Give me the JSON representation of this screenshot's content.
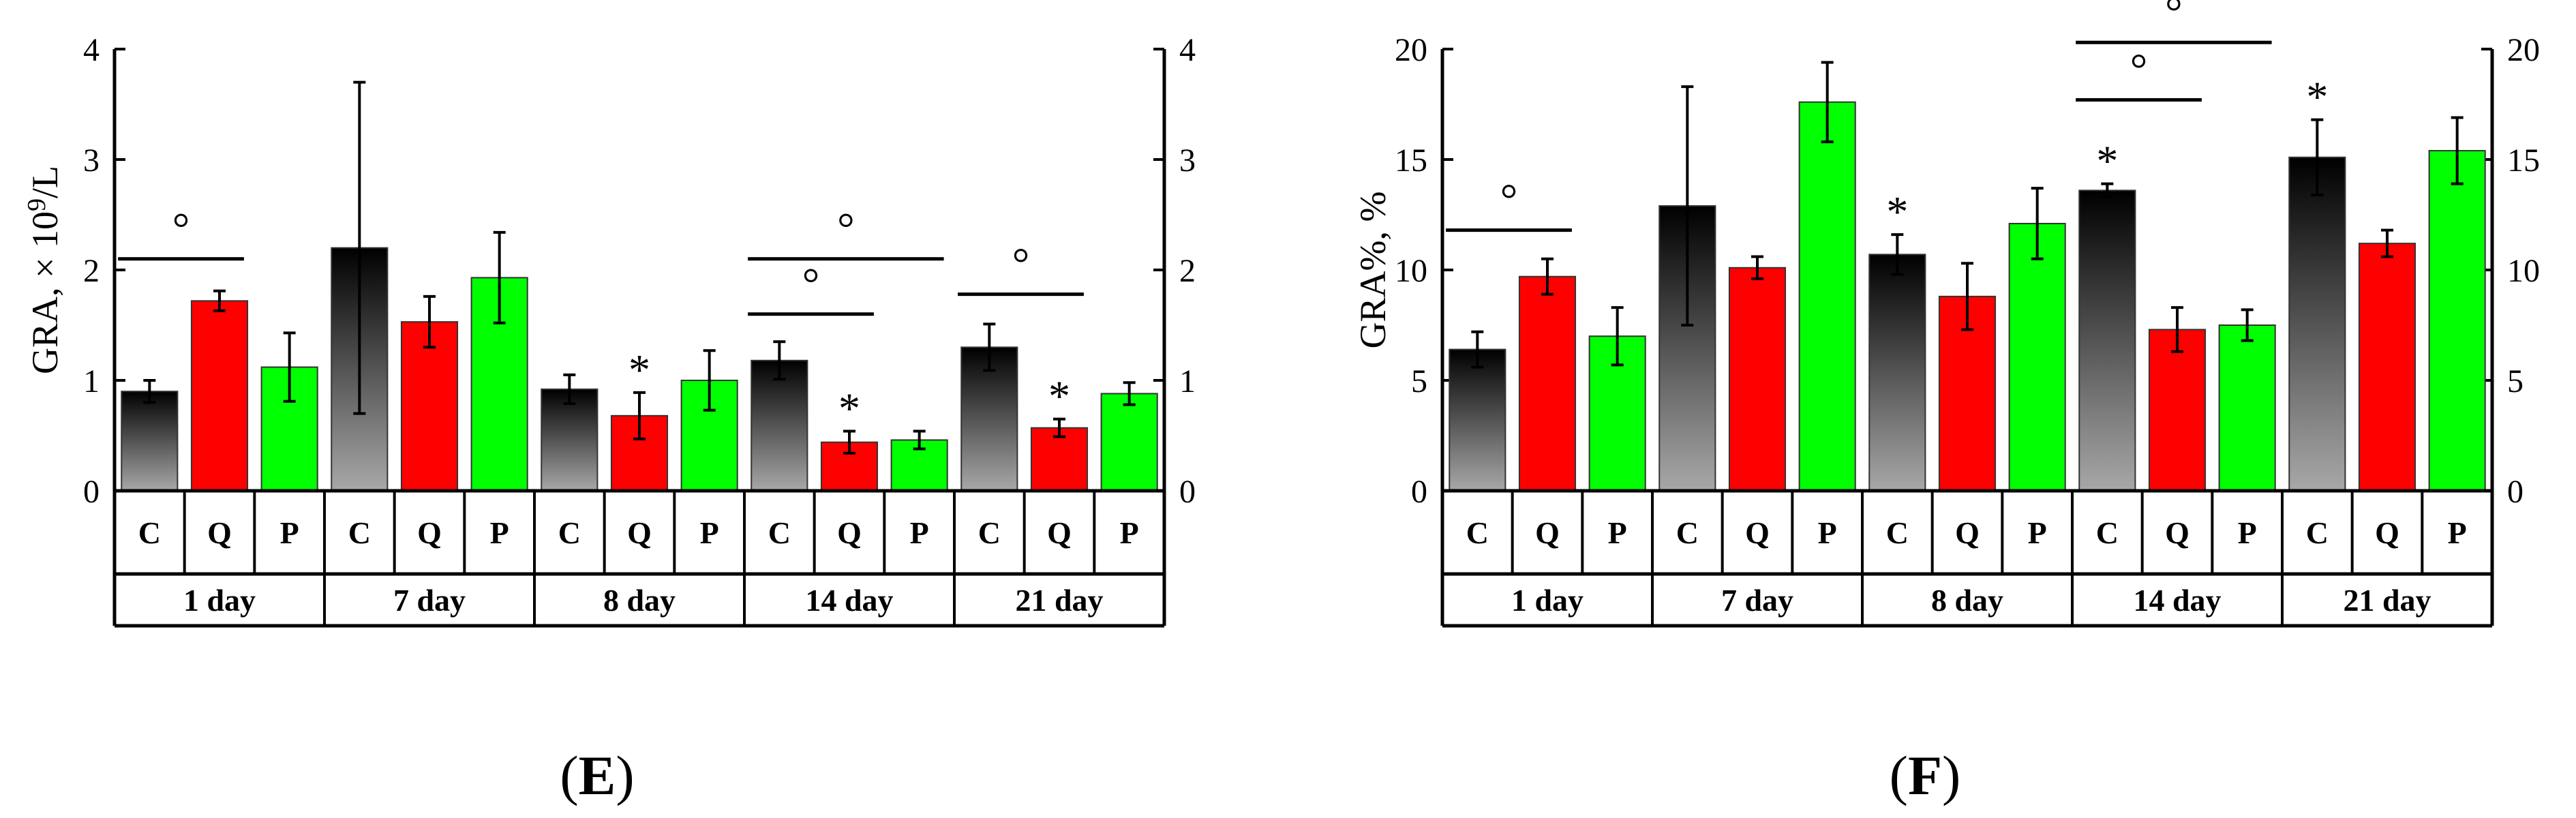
{
  "chart_data": [
    {
      "type": "bar",
      "panel": "(E)",
      "panel_prefix": "(",
      "panel_letter": "E",
      "panel_suffix": ")",
      "ylabel": "GRA, × 10⁹/L",
      "ylabel_prefix": "GRA, × 10",
      "ylabel_exp": "9",
      "ylabel_suffix": "/L",
      "ylim": [
        0,
        4
      ],
      "yticks": [
        "0",
        "1",
        "2",
        "3",
        "4"
      ],
      "groups": [
        "1 day",
        "7 day",
        "8 day",
        "14 day",
        "21 day"
      ],
      "subcategories": [
        "C",
        "Q",
        "P"
      ],
      "series": [
        {
          "name": "C",
          "color": "#000000",
          "gradient": true,
          "values": [
            0.9,
            2.2,
            0.92,
            1.18,
            1.3
          ],
          "errors": [
            0.1,
            1.5,
            0.13,
            0.17,
            0.21
          ]
        },
        {
          "name": "Q",
          "color": "#ff0000",
          "values": [
            1.72,
            1.53,
            0.68,
            0.44,
            0.57
          ],
          "errors": [
            0.09,
            0.23,
            0.21,
            0.1,
            0.08
          ]
        },
        {
          "name": "P",
          "color": "#00ff00",
          "values": [
            1.12,
            1.93,
            1.0,
            0.46,
            0.88
          ],
          "errors": [
            0.31,
            0.41,
            0.27,
            0.08,
            0.1
          ]
        }
      ],
      "stars": [
        {
          "symbol": "*",
          "group": 2,
          "series": 1
        },
        {
          "symbol": "*",
          "group": 3,
          "series": 1
        },
        {
          "symbol": "*",
          "group": 4,
          "series": 1
        }
      ],
      "significance_brackets": [
        {
          "group": 0,
          "from": 0,
          "to": 1,
          "y": 2.1,
          "marker": "°"
        },
        {
          "group": 3,
          "from": 0,
          "to": 1,
          "y": 1.6,
          "marker": "°"
        },
        {
          "group": 3,
          "from": 0,
          "to": 2,
          "y": 2.1,
          "marker": "°"
        },
        {
          "group": 4,
          "from": 0,
          "to": 1,
          "y": 1.78,
          "marker": "°"
        }
      ]
    },
    {
      "type": "bar",
      "panel": "(F)",
      "panel_prefix": "(",
      "panel_letter": "F",
      "panel_suffix": ")",
      "ylabel": "GRA%, %",
      "ylabel_prefix": "GRA%, %",
      "ylabel_exp": "",
      "ylabel_suffix": "",
      "ylim": [
        0,
        20
      ],
      "yticks": [
        "0",
        "5",
        "10",
        "15",
        "20"
      ],
      "groups": [
        "1 day",
        "7 day",
        "8 day",
        "14 day",
        "21 day"
      ],
      "subcategories": [
        "C",
        "Q",
        "P"
      ],
      "series": [
        {
          "name": "C",
          "color": "#000000",
          "gradient": true,
          "values": [
            6.4,
            12.9,
            10.7,
            13.6,
            15.1
          ],
          "errors": [
            0.8,
            5.4,
            0.9,
            0.3,
            1.7
          ]
        },
        {
          "name": "Q",
          "color": "#ff0000",
          "values": [
            9.7,
            10.1,
            8.8,
            7.3,
            11.2
          ],
          "errors": [
            0.8,
            0.5,
            1.5,
            1.0,
            0.6
          ]
        },
        {
          "name": "P",
          "color": "#00ff00",
          "values": [
            7.0,
            17.6,
            12.1,
            7.5,
            15.4
          ],
          "errors": [
            1.3,
            1.8,
            1.6,
            0.7,
            1.5
          ]
        }
      ],
      "stars": [
        {
          "symbol": "*",
          "group": 2,
          "series": 0
        },
        {
          "symbol": "*",
          "group": 3,
          "series": 0
        },
        {
          "symbol": "*",
          "group": 4,
          "series": 0
        }
      ],
      "significance_brackets": [
        {
          "group": 0,
          "from": 0,
          "to": 1,
          "y": 11.8,
          "marker": "°"
        },
        {
          "group": 3,
          "from": 0,
          "to": 1,
          "y": 17.7,
          "marker": "°"
        },
        {
          "group": 3,
          "from": 0,
          "to": 2,
          "y": 20.3,
          "marker": "°"
        }
      ]
    }
  ]
}
